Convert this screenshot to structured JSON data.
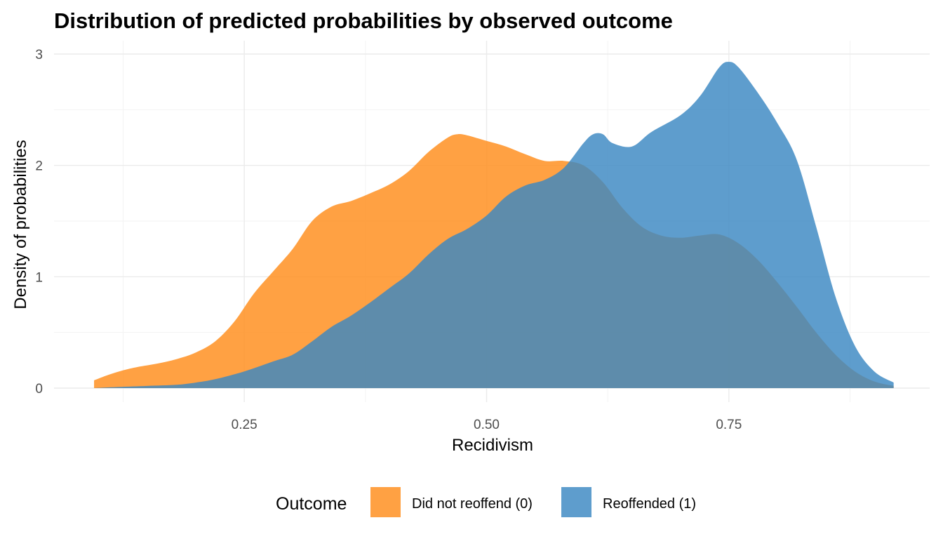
{
  "chart_data": {
    "type": "area",
    "title": "Distribution of predicted probabilities by observed outcome",
    "xlabel": "Recidivism",
    "ylabel": "Density of probabilities",
    "xlim": [
      0.095,
      0.92
    ],
    "ylim": [
      0,
      3
    ],
    "x_ticks": [
      {
        "value": 0.25,
        "label": "0.25"
      },
      {
        "value": 0.5,
        "label": "0.50"
      },
      {
        "value": 0.75,
        "label": "0.75"
      }
    ],
    "x_minor_ticks": [
      0.125,
      0.375,
      0.625,
      0.875
    ],
    "y_ticks": [
      {
        "value": 0,
        "label": "0"
      },
      {
        "value": 1,
        "label": "1"
      },
      {
        "value": 2,
        "label": "2"
      },
      {
        "value": 3,
        "label": "3"
      }
    ],
    "y_minor_ticks": [
      0.5,
      1.5,
      2.5
    ],
    "grid": true,
    "legend": {
      "position": "bottom",
      "title": "Outcome",
      "entries": [
        {
          "label": "Did not reoffend (0)",
          "color": "#FF8C1A"
        },
        {
          "label": "Reoffended (1)",
          "color": "#3A88C2"
        }
      ]
    },
    "fill_opacity": 0.82,
    "series": [
      {
        "name": "Did not reoffend (0)",
        "color": "#FF8C1A",
        "x": [
          0.095,
          0.11,
          0.125,
          0.14,
          0.16,
          0.18,
          0.2,
          0.22,
          0.24,
          0.26,
          0.28,
          0.3,
          0.32,
          0.34,
          0.36,
          0.38,
          0.4,
          0.42,
          0.44,
          0.46,
          0.47,
          0.48,
          0.5,
          0.52,
          0.54,
          0.56,
          0.58,
          0.6,
          0.62,
          0.64,
          0.66,
          0.68,
          0.7,
          0.72,
          0.74,
          0.76,
          0.78,
          0.8,
          0.82,
          0.84,
          0.86,
          0.88,
          0.9,
          0.92
        ],
        "y": [
          0.07,
          0.12,
          0.16,
          0.19,
          0.22,
          0.26,
          0.32,
          0.42,
          0.6,
          0.85,
          1.05,
          1.25,
          1.5,
          1.63,
          1.68,
          1.75,
          1.83,
          1.95,
          2.12,
          2.25,
          2.28,
          2.27,
          2.22,
          2.17,
          2.1,
          2.04,
          2.04,
          2.0,
          1.85,
          1.62,
          1.45,
          1.37,
          1.35,
          1.37,
          1.38,
          1.3,
          1.15,
          0.95,
          0.73,
          0.5,
          0.3,
          0.15,
          0.06,
          0.02
        ]
      },
      {
        "name": "Reoffended (1)",
        "color": "#3A88C2",
        "x": [
          0.095,
          0.12,
          0.15,
          0.18,
          0.2,
          0.22,
          0.25,
          0.28,
          0.3,
          0.32,
          0.34,
          0.36,
          0.38,
          0.4,
          0.42,
          0.44,
          0.46,
          0.48,
          0.5,
          0.52,
          0.54,
          0.56,
          0.58,
          0.6,
          0.61,
          0.62,
          0.63,
          0.65,
          0.67,
          0.7,
          0.72,
          0.74,
          0.75,
          0.76,
          0.78,
          0.8,
          0.82,
          0.84,
          0.86,
          0.88,
          0.9,
          0.92
        ],
        "y": [
          0.0,
          0.01,
          0.02,
          0.03,
          0.05,
          0.08,
          0.15,
          0.24,
          0.3,
          0.42,
          0.55,
          0.65,
          0.77,
          0.9,
          1.03,
          1.2,
          1.34,
          1.43,
          1.55,
          1.72,
          1.82,
          1.87,
          1.98,
          2.2,
          2.28,
          2.28,
          2.2,
          2.17,
          2.3,
          2.45,
          2.62,
          2.88,
          2.93,
          2.88,
          2.65,
          2.38,
          2.05,
          1.45,
          0.82,
          0.38,
          0.15,
          0.05
        ]
      }
    ]
  }
}
